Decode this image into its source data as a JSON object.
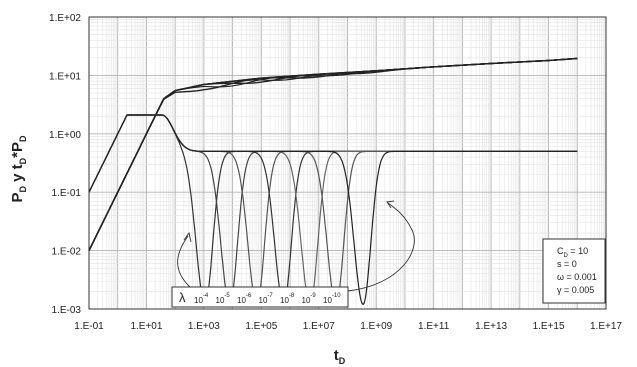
{
  "chart_data": {
    "type": "line",
    "scale": {
      "x": "log",
      "y": "log"
    },
    "xlim": [
      0.1,
      1e+17
    ],
    "ylim": [
      0.001,
      100
    ],
    "grid": true,
    "xlabel": "t_D",
    "xlabel_parts": {
      "main": "t",
      "sub": "D"
    },
    "ylabel_parts": [
      {
        "main": "P",
        "sub": "D"
      },
      {
        "main": " y t",
        "sub": "D"
      },
      {
        "main": "*P",
        "sub": "D"
      }
    ],
    "x_ticks": [
      {
        "value": 0.1,
        "label": "1.E-01"
      },
      {
        "value": 10,
        "label": "1.E+01"
      },
      {
        "value": 1000,
        "label": "1.E+03"
      },
      {
        "value": 100000,
        "label": "1.E+05"
      },
      {
        "value": 10000000,
        "label": "1.E+07"
      },
      {
        "value": 1000000000,
        "label": "1.E+09"
      },
      {
        "value": 100000000000,
        "label": "1.E+11"
      },
      {
        "value": 10000000000000,
        "label": "1.E+13"
      },
      {
        "value": 1000000000000000,
        "label": "1.E+15"
      },
      {
        "value": 100000000000000000,
        "label": "1.E+17"
      }
    ],
    "y_ticks": [
      {
        "value": 0.001,
        "label": "1.E-03"
      },
      {
        "value": 0.01,
        "label": "1.E-02"
      },
      {
        "value": 0.1,
        "label": "1.E-01"
      },
      {
        "value": 1,
        "label": "1.E+00"
      },
      {
        "value": 10,
        "label": "1.E+01"
      },
      {
        "value": 100,
        "label": "1.E+02"
      }
    ],
    "legend": {
      "placement": "bottom-right",
      "lines": [
        {
          "text": "C",
          "sub": "D",
          "rest": " = 10"
        },
        {
          "text": "s = 0",
          "sub": "",
          "rest": ""
        },
        {
          "text": "ω = 0.001",
          "sub": "",
          "rest": ""
        },
        {
          "text": "γ = 0.005",
          "sub": "",
          "rest": ""
        }
      ]
    },
    "lambda_box": {
      "symbol": "λ",
      "labels": [
        "-4",
        "-5",
        "-6",
        "-7",
        "-8",
        "-9",
        "-10"
      ],
      "base": "10"
    },
    "lambda_values": [
      0.0001,
      1e-05,
      1e-06,
      1e-07,
      1e-08,
      1e-09,
      1e-10
    ],
    "pressure_curve": {
      "x": [
        0.1,
        0.3,
        1,
        3,
        10,
        20,
        40,
        100,
        1000,
        100000.0,
        10000000.0,
        1000000000.0,
        100000000000.0,
        10000000000000.0,
        1000000000000000.0,
        1e+16
      ],
      "y": [
        0.01,
        0.03,
        0.1,
        0.3,
        1.0,
        2.0,
        4.0,
        5.5,
        7.0,
        9.0,
        10.5,
        12.0,
        14.0,
        16.0,
        18.0,
        19.5
      ]
    },
    "derivative_peak": {
      "x": 35,
      "y": 2.1
    },
    "derivative_plateau_y": 0.5,
    "derivative_trough_y": 0.0012,
    "series_trough_x": [
      1100,
      8000,
      70000,
      600000,
      5000000,
      40000000,
      350000000
    ]
  }
}
